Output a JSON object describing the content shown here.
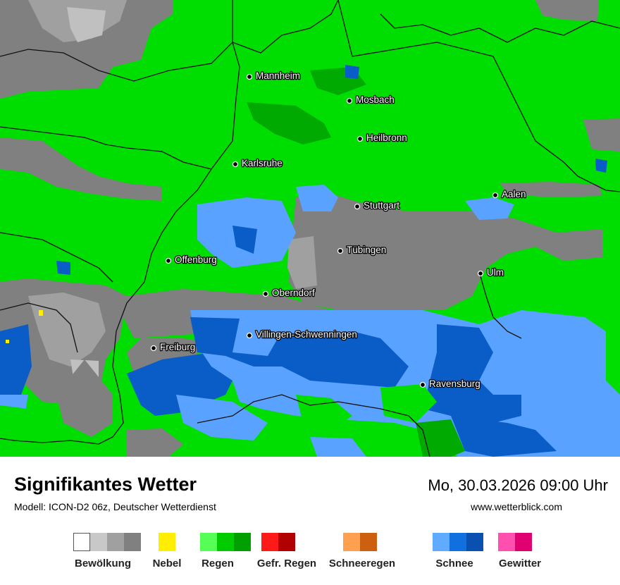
{
  "map": {
    "cities": [
      {
        "name": "Mannheim"
      },
      {
        "name": "Mosbach"
      },
      {
        "name": "Heilbronn"
      },
      {
        "name": "Karlsruhe"
      },
      {
        "name": "Aalen"
      },
      {
        "name": "Stuttgart"
      },
      {
        "name": "Tübingen"
      },
      {
        "name": "Offenburg"
      },
      {
        "name": "Ulm"
      },
      {
        "name": "Oberndorf"
      },
      {
        "name": "Villingen-Schwenningen"
      },
      {
        "name": "Freiburg"
      },
      {
        "name": "Ravensburg"
      }
    ],
    "colors": {
      "background_rain": "#00dd00",
      "rain_dark": "#00aa00",
      "cloud_dark": "#808080",
      "cloud_light": "#a0a0a0",
      "snow_light": "#5aa2ff",
      "snow_dark": "#0a5cc6",
      "border": "#111111"
    }
  },
  "footer": {
    "title": "Signifikantes Wetter",
    "subtitle": "Modell: ICON-D2 06z, Deutscher Wetterdienst",
    "datetime": "Mo, 30.03.2026 09:00 Uhr",
    "website": "www.wetterblick.com"
  },
  "legend": [
    {
      "label": "Bewölkung",
      "colors": [
        "#ffffff",
        "#c8c8c8",
        "#a0a0a0",
        "#808080"
      ]
    },
    {
      "label": "Nebel",
      "colors": [
        "#ffee00"
      ]
    },
    {
      "label": "Regen",
      "colors": [
        "#55ff55",
        "#00cc00",
        "#00a000"
      ]
    },
    {
      "label": "Gefr. Regen",
      "colors": [
        "#ff1a1a",
        "#b00000"
      ]
    },
    {
      "label": "Schneeregen",
      "colors": [
        "#ffa050",
        "#cc6010"
      ]
    },
    {
      "label": "Schnee",
      "colors": [
        "#60aaff",
        "#1070e0",
        "#0a50b0"
      ]
    },
    {
      "label": "Gewitter",
      "colors": [
        "#ff50b0",
        "#e00070"
      ]
    }
  ]
}
